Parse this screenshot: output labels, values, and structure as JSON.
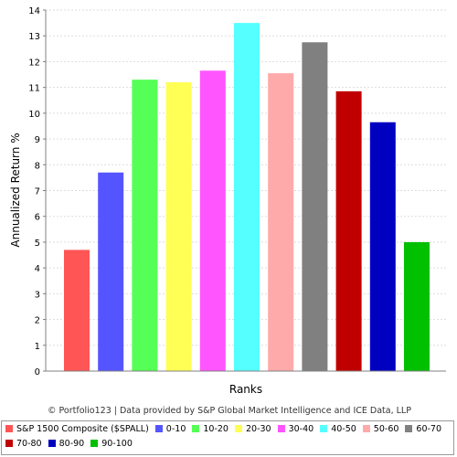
{
  "chart_data": {
    "type": "bar",
    "title": "",
    "xlabel": "Ranks",
    "ylabel": "Annualized Return %",
    "ylim": [
      0,
      14
    ],
    "yticks": [
      0,
      1,
      2,
      3,
      4,
      5,
      6,
      7,
      8,
      9,
      10,
      11,
      12,
      13,
      14
    ],
    "grid": "horizontal",
    "legend_position": "bottom",
    "categories": [
      "S&P 1500 Composite ($SPALL)",
      "0-10",
      "10-20",
      "20-30",
      "30-40",
      "40-50",
      "50-60",
      "60-70",
      "70-80",
      "80-90",
      "90-100"
    ],
    "values": [
      4.7,
      7.7,
      11.3,
      11.2,
      11.65,
      13.5,
      11.55,
      12.75,
      10.85,
      9.65,
      5.0
    ],
    "colors": [
      "#ff5555",
      "#5555ff",
      "#55ff55",
      "#ffff55",
      "#ff55ff",
      "#55ffff",
      "#ffaaaa",
      "#808080",
      "#c00000",
      "#0000c0",
      "#00c000"
    ],
    "footnote": "© Portfolio123 | Data provided by S&P Global Market Intelligence and ICE Data, LLP"
  }
}
